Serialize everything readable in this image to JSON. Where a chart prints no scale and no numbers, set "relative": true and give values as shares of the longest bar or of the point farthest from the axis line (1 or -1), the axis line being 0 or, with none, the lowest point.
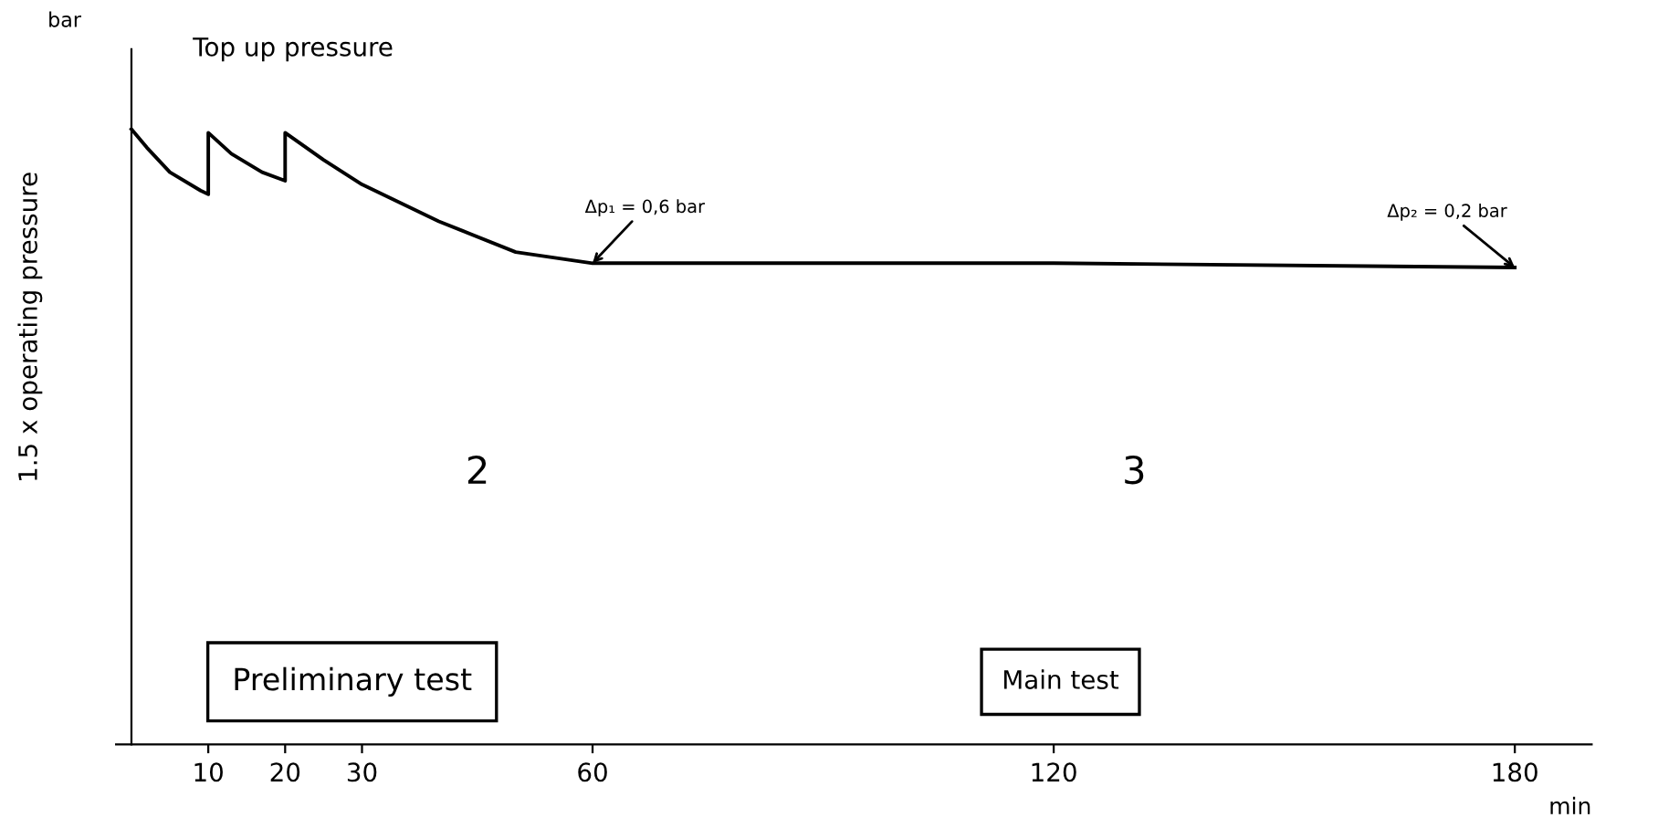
{
  "chart_data": {
    "type": "line",
    "relative": true,
    "xlabel": "min",
    "ylabel": "1.5 x operating pressure",
    "x": [
      0,
      2,
      5,
      9,
      10,
      10,
      13,
      17,
      20,
      20,
      25,
      30,
      40,
      50,
      60,
      120,
      180
    ],
    "series": [
      {
        "color": "#000000",
        "values": [
          1.0,
          0.97,
          0.93,
          0.9,
          0.894,
          0.994,
          0.96,
          0.93,
          0.916,
          0.994,
          0.95,
          0.91,
          0.85,
          0.8,
          0.782,
          0.782,
          0.775
        ]
      }
    ],
    "xlim": [
      -2,
      190
    ],
    "xticks": [
      10,
      20,
      30,
      60,
      120,
      180
    ],
    "annotations": [
      "bar",
      "Top up pressure",
      {
        "text": "Δp₁ = 0,6 bar",
        "x": 60,
        "y": 0.782
      },
      {
        "text": "Δp₂ = 0,2 bar",
        "x": 180,
        "y": 0.775
      },
      "2",
      "3",
      "Preliminary test",
      "Main test"
    ],
    "grid": false,
    "marker": "none",
    "line_style": "solid"
  }
}
